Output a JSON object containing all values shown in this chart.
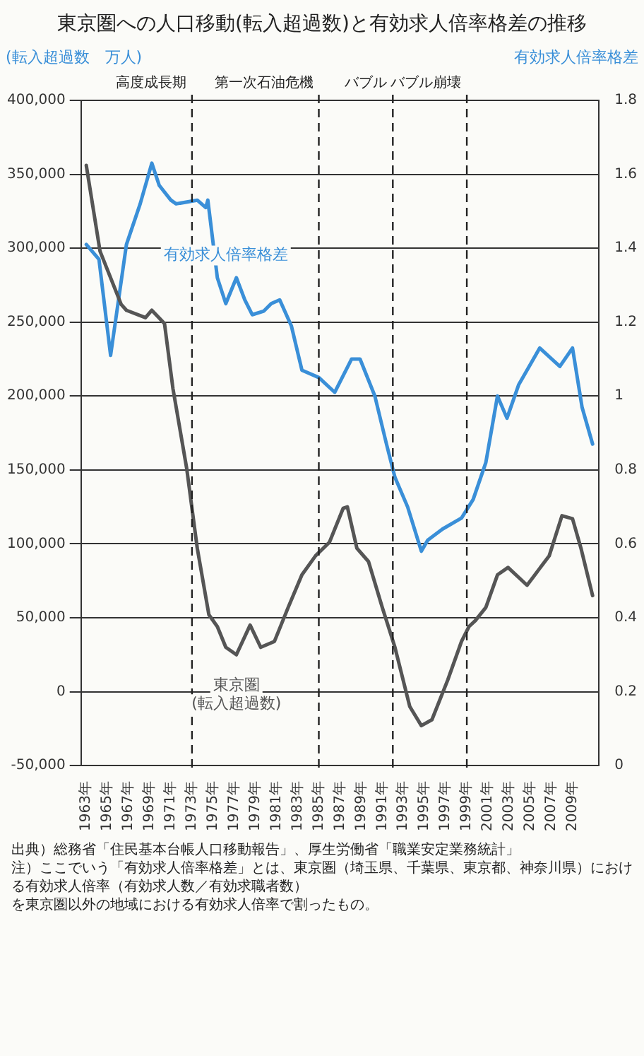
{
  "chart_data": {
    "type": "line",
    "title": "東京圏への人口移動(転入超過数)と有効求人倍率格差の推移",
    "ylabel": "(転入超過数　万人)",
    "y2label": "有効求人倍率格差",
    "xlim": [
      1962.5,
      2011.5
    ],
    "xticks": [
      {
        "value": 1963,
        "label": "1963年"
      },
      {
        "value": 1965,
        "label": "1965年"
      },
      {
        "value": 1967,
        "label": "1967年"
      },
      {
        "value": 1969,
        "label": "1969年"
      },
      {
        "value": 1971,
        "label": "1971年"
      },
      {
        "value": 1973,
        "label": "1973年"
      },
      {
        "value": 1975,
        "label": "1975年"
      },
      {
        "value": 1977,
        "label": "1977年"
      },
      {
        "value": 1979,
        "label": "1979年"
      },
      {
        "value": 1981,
        "label": "1981年"
      },
      {
        "value": 1983,
        "label": "1983年"
      },
      {
        "value": 1985,
        "label": "1985年"
      },
      {
        "value": 1987,
        "label": "1987年"
      },
      {
        "value": 1989,
        "label": "1989年"
      },
      {
        "value": 1991,
        "label": "1991年"
      },
      {
        "value": 1993,
        "label": "1993年"
      },
      {
        "value": 1995,
        "label": "1995年"
      },
      {
        "value": 1997,
        "label": "1997年"
      },
      {
        "value": 1999,
        "label": "1999年"
      },
      {
        "value": 2001,
        "label": "2001年"
      },
      {
        "value": 2003,
        "label": "2003年"
      },
      {
        "value": 2005,
        "label": "2005年"
      },
      {
        "value": 2007,
        "label": "2007年"
      },
      {
        "value": 2009,
        "label": "2009年"
      }
    ],
    "ylim": [
      -50000,
      400000
    ],
    "yticks": [
      {
        "value": -50000,
        "label": "-50,000"
      },
      {
        "value": 0,
        "label": "0"
      },
      {
        "value": 50000,
        "label": "50,000"
      },
      {
        "value": 100000,
        "label": "100,000"
      },
      {
        "value": 150000,
        "label": "150,000"
      },
      {
        "value": 200000,
        "label": "200,000"
      },
      {
        "value": 250000,
        "label": "250,000"
      },
      {
        "value": 300000,
        "label": "300,000"
      },
      {
        "value": 350000,
        "label": "350,000"
      },
      {
        "value": 400000,
        "label": "400,000"
      }
    ],
    "y2lim": [
      0,
      1.8
    ],
    "y2ticks": [
      0,
      0.2,
      0.4,
      0.6,
      0.8,
      1,
      1.2,
      1.4,
      1.6,
      1.8
    ],
    "grid": "y",
    "legend": false,
    "marker": "none",
    "line_style": "solid",
    "series": [
      {
        "name": "東京圏\n(転入超過数)",
        "color": "#555555",
        "x": [
          1963,
          1964.3,
          1966.3,
          1966.8,
          1968.6,
          1969.2,
          1970.4,
          1971.2,
          1972.5,
          1973.5,
          1974.6,
          1975.4,
          1976.2,
          1977.2,
          1978.5,
          1979.5,
          1980.8,
          1982.1,
          1983.4,
          1984.7,
          1986,
          1987.3,
          1987.7,
          1988.6,
          1989.7,
          1991,
          1992.2,
          1993.6,
          1994.7,
          1995.7,
          1997.2,
          1998.5,
          1999.2,
          1999.8,
          2000.8,
          2001.9,
          2002.9,
          2004.7,
          2006.8,
          2008,
          2009,
          2009.8,
          2010.9
        ],
        "values": [
          356000,
          298000,
          262000,
          258000,
          253000,
          258000,
          249000,
          205000,
          151000,
          97000,
          52000,
          44000,
          30000,
          25000,
          45000,
          30000,
          34000,
          57000,
          79000,
          92000,
          101000,
          124000,
          125000,
          97000,
          88000,
          57000,
          30000,
          -10000,
          -23000,
          -19000,
          8000,
          34000,
          44000,
          48000,
          57000,
          79000,
          84000,
          72000,
          92000,
          119000,
          117000,
          97000,
          65000
        ]
      },
      {
        "name": "有効求人倍率格差",
        "color": "#3a8fd8",
        "axis": "y2",
        "x": [
          1963,
          1964.2,
          1965.3,
          1966.8,
          1968.1,
          1969.2,
          1969.9,
          1971,
          1971.5,
          1973.5,
          1974.3,
          1974.5,
          1975.4,
          1976.2,
          1977.2,
          1978,
          1978.7,
          1979.8,
          1980.5,
          1981.3,
          1982.4,
          1983.4,
          1985,
          1986.5,
          1988.1,
          1988.9,
          1990.3,
          1991.4,
          1992.2,
          1993.4,
          1994.7,
          1995.3,
          1996.7,
          1998.5,
          1999.6,
          2000.8,
          2001.9,
          2002.8,
          2003.9,
          2005.9,
          2007.8,
          2009,
          2009.9,
          2010.9
        ],
        "values": [
          1.41,
          1.37,
          1.11,
          1.41,
          1.52,
          1.63,
          1.57,
          1.53,
          1.52,
          1.53,
          1.51,
          1.53,
          1.32,
          1.25,
          1.32,
          1.26,
          1.22,
          1.23,
          1.25,
          1.26,
          1.19,
          1.07,
          1.05,
          1.01,
          1.1,
          1.1,
          1,
          0.87,
          0.78,
          0.7,
          0.58,
          0.61,
          0.64,
          0.67,
          0.72,
          0.82,
          1,
          0.94,
          1.03,
          1.13,
          1.08,
          1.13,
          0.97,
          0.87
        ]
      }
    ],
    "ref_lines": [
      {
        "axis": "x",
        "value": 1973,
        "line_style": "dashed",
        "color": "#222222",
        "label": "高度成長期"
      },
      {
        "axis": "x",
        "value": 1985,
        "line_style": "dashed",
        "color": "#222222",
        "label": "第一次石油危機"
      },
      {
        "axis": "x",
        "value": 1992,
        "line_style": "dashed",
        "color": "#222222",
        "label": "バブル"
      },
      {
        "axis": "x",
        "value": 1999,
        "line_style": "dashed",
        "color": "#222222",
        "label": "バブル崩壊"
      }
    ],
    "annotations": [
      "出典）総務省「住民基本台帳人口移動報告」、厚生労働省「職業安定業務統計」",
      "注）ここでいう「有効求人倍率格差」とは、東京圏（埼玉県、千葉県、東京都、神奈川県）における有効求人倍率（有効求人数／有効求職者数）",
      "を東京圏以外の地域における有効求人倍率で割ったもの。"
    ]
  }
}
